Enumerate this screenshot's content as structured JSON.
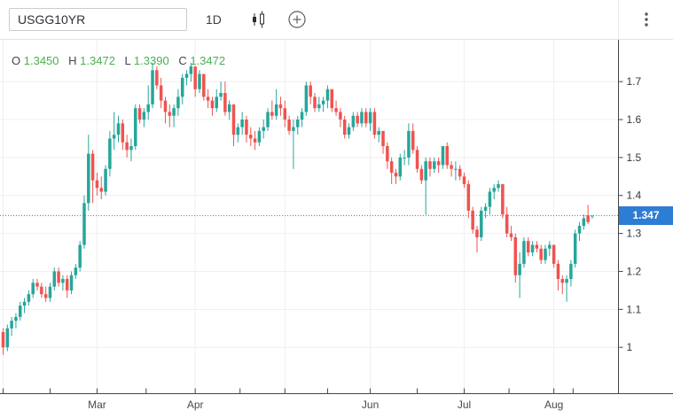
{
  "toolbar": {
    "symbol_input": {
      "value": "USGG10YR",
      "placeholder": ""
    },
    "interval_label": "1D",
    "style_icon": "candlestick-style-icon",
    "add_icon": "plus-circle-icon",
    "menu_icon": "kebab-menu-icon"
  },
  "legend": {
    "o_label": "O",
    "o_value": "1.3450",
    "h_label": "H",
    "h_value": "1.3472",
    "l_label": "L",
    "l_value": "1.3390",
    "c_label": "C",
    "c_value": "1.3472"
  },
  "price_axis": {
    "last_price_label": "1.347",
    "ticks": [
      "1.7",
      "1.6",
      "1.5",
      "1.4",
      "1.3",
      "1.2",
      "1.1",
      "1"
    ]
  },
  "time_axis": {
    "labels": [
      {
        "text": "Mar",
        "index": 22
      },
      {
        "text": "Apr",
        "index": 45
      },
      {
        "text": "Jun",
        "index": 86
      },
      {
        "text": "Jul",
        "index": 108
      },
      {
        "text": "Aug",
        "index": 129
      }
    ]
  },
  "colors": {
    "up": "#26a69a",
    "down": "#ef5350",
    "grid": "#efeff2",
    "axis_line": "#42454a",
    "tick_text": "#33363c",
    "month_text": "#45484e",
    "price_line": "#4d7fc1",
    "last_price_badge": "#2e7dd4",
    "legend_value": "#4caf50"
  },
  "chart_data": {
    "type": "candlestick",
    "symbol": "USGG10YR",
    "interval": "1D",
    "last_price": 1.347,
    "ylim": [
      0.878,
      1.81
    ],
    "y_ticks": [
      {
        "label": "1.7",
        "value": 1.7
      },
      {
        "label": "1.6",
        "value": 1.6
      },
      {
        "label": "1.5",
        "value": 1.5
      },
      {
        "label": "1.4",
        "value": 1.4
      },
      {
        "label": "1.3",
        "value": 1.3
      },
      {
        "label": "1.2",
        "value": 1.2
      },
      {
        "label": "1.1",
        "value": 1.1
      },
      {
        "label": "1",
        "value": 1.0
      }
    ],
    "month_gridline_indices": [
      0,
      22,
      45,
      66,
      86,
      108,
      129
    ],
    "grid": true,
    "candles": [
      [
        1.04,
        1.05,
        0.98,
        1.0
      ],
      [
        1.0,
        1.06,
        0.99,
        1.05
      ],
      [
        1.05,
        1.08,
        1.03,
        1.07
      ],
      [
        1.07,
        1.09,
        1.05,
        1.08
      ],
      [
        1.08,
        1.12,
        1.07,
        1.11
      ],
      [
        1.11,
        1.13,
        1.09,
        1.12
      ],
      [
        1.12,
        1.15,
        1.11,
        1.14
      ],
      [
        1.14,
        1.18,
        1.13,
        1.17
      ],
      [
        1.17,
        1.18,
        1.15,
        1.16
      ],
      [
        1.16,
        1.17,
        1.13,
        1.14
      ],
      [
        1.14,
        1.16,
        1.12,
        1.13
      ],
      [
        1.13,
        1.17,
        1.12,
        1.16
      ],
      [
        1.16,
        1.21,
        1.15,
        1.2
      ],
      [
        1.2,
        1.21,
        1.16,
        1.17
      ],
      [
        1.17,
        1.19,
        1.15,
        1.18
      ],
      [
        1.18,
        1.19,
        1.13,
        1.15
      ],
      [
        1.15,
        1.2,
        1.14,
        1.19
      ],
      [
        1.19,
        1.22,
        1.18,
        1.21
      ],
      [
        1.21,
        1.28,
        1.2,
        1.27
      ],
      [
        1.27,
        1.4,
        1.26,
        1.38
      ],
      [
        1.38,
        1.56,
        1.36,
        1.51
      ],
      [
        1.51,
        1.52,
        1.38,
        1.44
      ],
      [
        1.44,
        1.46,
        1.4,
        1.42
      ],
      [
        1.42,
        1.45,
        1.39,
        1.41
      ],
      [
        1.41,
        1.48,
        1.4,
        1.47
      ],
      [
        1.47,
        1.57,
        1.45,
        1.55
      ],
      [
        1.55,
        1.62,
        1.52,
        1.56
      ],
      [
        1.56,
        1.61,
        1.54,
        1.59
      ],
      [
        1.59,
        1.6,
        1.52,
        1.54
      ],
      [
        1.54,
        1.56,
        1.5,
        1.52
      ],
      [
        1.52,
        1.55,
        1.49,
        1.53
      ],
      [
        1.53,
        1.64,
        1.52,
        1.63
      ],
      [
        1.63,
        1.64,
        1.59,
        1.6
      ],
      [
        1.6,
        1.63,
        1.58,
        1.62
      ],
      [
        1.62,
        1.69,
        1.6,
        1.64
      ],
      [
        1.64,
        1.75,
        1.63,
        1.73
      ],
      [
        1.73,
        1.74,
        1.68,
        1.69
      ],
      [
        1.69,
        1.71,
        1.63,
        1.65
      ],
      [
        1.65,
        1.66,
        1.59,
        1.62
      ],
      [
        1.62,
        1.64,
        1.58,
        1.61
      ],
      [
        1.61,
        1.64,
        1.58,
        1.63
      ],
      [
        1.63,
        1.68,
        1.61,
        1.66
      ],
      [
        1.66,
        1.72,
        1.64,
        1.71
      ],
      [
        1.71,
        1.73,
        1.69,
        1.72
      ],
      [
        1.72,
        1.75,
        1.7,
        1.74
      ],
      [
        1.74,
        1.74,
        1.66,
        1.68
      ],
      [
        1.68,
        1.73,
        1.67,
        1.72
      ],
      [
        1.72,
        1.72,
        1.65,
        1.66
      ],
      [
        1.66,
        1.68,
        1.63,
        1.65
      ],
      [
        1.65,
        1.66,
        1.61,
        1.63
      ],
      [
        1.63,
        1.68,
        1.62,
        1.66
      ],
      [
        1.66,
        1.7,
        1.65,
        1.67
      ],
      [
        1.67,
        1.7,
        1.61,
        1.62
      ],
      [
        1.62,
        1.65,
        1.6,
        1.64
      ],
      [
        1.64,
        1.64,
        1.53,
        1.56
      ],
      [
        1.56,
        1.59,
        1.54,
        1.58
      ],
      [
        1.58,
        1.62,
        1.56,
        1.6
      ],
      [
        1.6,
        1.61,
        1.54,
        1.56
      ],
      [
        1.56,
        1.58,
        1.53,
        1.55
      ],
      [
        1.55,
        1.57,
        1.52,
        1.54
      ],
      [
        1.54,
        1.58,
        1.53,
        1.57
      ],
      [
        1.57,
        1.6,
        1.55,
        1.58
      ],
      [
        1.58,
        1.63,
        1.57,
        1.62
      ],
      [
        1.62,
        1.65,
        1.6,
        1.61
      ],
      [
        1.61,
        1.68,
        1.6,
        1.64
      ],
      [
        1.64,
        1.66,
        1.61,
        1.63
      ],
      [
        1.63,
        1.65,
        1.58,
        1.6
      ],
      [
        1.6,
        1.61,
        1.56,
        1.57
      ],
      [
        1.57,
        1.6,
        1.47,
        1.58
      ],
      [
        1.58,
        1.61,
        1.56,
        1.6
      ],
      [
        1.6,
        1.63,
        1.58,
        1.62
      ],
      [
        1.62,
        1.7,
        1.61,
        1.69
      ],
      [
        1.69,
        1.7,
        1.64,
        1.66
      ],
      [
        1.66,
        1.67,
        1.62,
        1.63
      ],
      [
        1.63,
        1.66,
        1.62,
        1.64
      ],
      [
        1.64,
        1.66,
        1.62,
        1.65
      ],
      [
        1.65,
        1.69,
        1.63,
        1.68
      ],
      [
        1.68,
        1.68,
        1.62,
        1.63
      ],
      [
        1.63,
        1.65,
        1.61,
        1.62
      ],
      [
        1.62,
        1.63,
        1.58,
        1.6
      ],
      [
        1.6,
        1.61,
        1.55,
        1.56
      ],
      [
        1.56,
        1.59,
        1.55,
        1.58
      ],
      [
        1.58,
        1.62,
        1.57,
        1.61
      ],
      [
        1.61,
        1.62,
        1.58,
        1.59
      ],
      [
        1.59,
        1.63,
        1.58,
        1.62
      ],
      [
        1.62,
        1.63,
        1.58,
        1.59
      ],
      [
        1.59,
        1.63,
        1.57,
        1.62
      ],
      [
        1.62,
        1.63,
        1.55,
        1.56
      ],
      [
        1.56,
        1.58,
        1.54,
        1.57
      ],
      [
        1.57,
        1.57,
        1.51,
        1.53
      ],
      [
        1.53,
        1.54,
        1.47,
        1.49
      ],
      [
        1.49,
        1.5,
        1.43,
        1.46
      ],
      [
        1.46,
        1.47,
        1.43,
        1.45
      ],
      [
        1.45,
        1.51,
        1.44,
        1.5
      ],
      [
        1.5,
        1.52,
        1.48,
        1.5
      ],
      [
        1.5,
        1.59,
        1.48,
        1.57
      ],
      [
        1.57,
        1.59,
        1.51,
        1.52
      ],
      [
        1.52,
        1.53,
        1.46,
        1.47
      ],
      [
        1.47,
        1.48,
        1.43,
        1.44
      ],
      [
        1.44,
        1.5,
        1.35,
        1.49
      ],
      [
        1.49,
        1.5,
        1.45,
        1.47
      ],
      [
        1.47,
        1.5,
        1.46,
        1.49
      ],
      [
        1.49,
        1.5,
        1.46,
        1.48
      ],
      [
        1.48,
        1.53,
        1.47,
        1.53
      ],
      [
        1.53,
        1.54,
        1.47,
        1.48
      ],
      [
        1.48,
        1.49,
        1.45,
        1.47
      ],
      [
        1.47,
        1.49,
        1.44,
        1.47
      ],
      [
        1.47,
        1.48,
        1.44,
        1.45
      ],
      [
        1.45,
        1.46,
        1.42,
        1.43
      ],
      [
        1.43,
        1.44,
        1.34,
        1.36
      ],
      [
        1.36,
        1.37,
        1.3,
        1.31
      ],
      [
        1.31,
        1.32,
        1.25,
        1.29
      ],
      [
        1.29,
        1.37,
        1.28,
        1.36
      ],
      [
        1.36,
        1.38,
        1.34,
        1.37
      ],
      [
        1.37,
        1.42,
        1.35,
        1.41
      ],
      [
        1.41,
        1.43,
        1.39,
        1.42
      ],
      [
        1.42,
        1.44,
        1.41,
        1.43
      ],
      [
        1.43,
        1.43,
        1.34,
        1.35
      ],
      [
        1.35,
        1.37,
        1.29,
        1.3
      ],
      [
        1.3,
        1.32,
        1.28,
        1.29
      ],
      [
        1.29,
        1.3,
        1.17,
        1.19
      ],
      [
        1.19,
        1.25,
        1.13,
        1.22
      ],
      [
        1.22,
        1.29,
        1.21,
        1.28
      ],
      [
        1.28,
        1.29,
        1.24,
        1.25
      ],
      [
        1.25,
        1.28,
        1.24,
        1.27
      ],
      [
        1.27,
        1.28,
        1.25,
        1.26
      ],
      [
        1.26,
        1.27,
        1.22,
        1.23
      ],
      [
        1.23,
        1.27,
        1.22,
        1.26
      ],
      [
        1.26,
        1.28,
        1.24,
        1.27
      ],
      [
        1.27,
        1.27,
        1.21,
        1.22
      ],
      [
        1.22,
        1.23,
        1.15,
        1.18
      ],
      [
        1.18,
        1.19,
        1.14,
        1.17
      ],
      [
        1.17,
        1.19,
        1.12,
        1.18
      ],
      [
        1.18,
        1.23,
        1.16,
        1.22
      ],
      [
        1.22,
        1.31,
        1.21,
        1.3
      ],
      [
        1.3,
        1.33,
        1.28,
        1.32
      ],
      [
        1.32,
        1.35,
        1.31,
        1.34
      ],
      [
        1.348,
        1.375,
        1.325,
        1.33
      ],
      [
        1.345,
        1.3472,
        1.339,
        1.3472
      ]
    ]
  }
}
